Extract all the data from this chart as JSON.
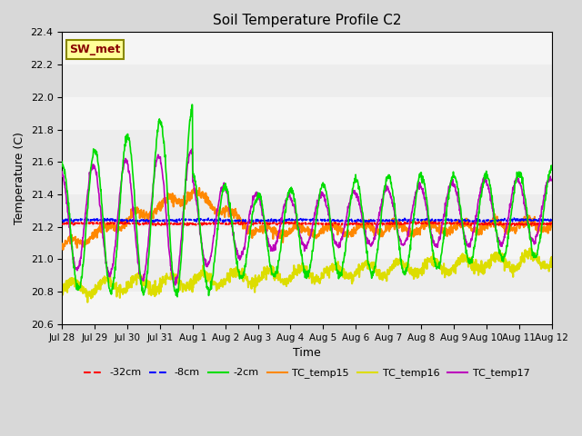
{
  "title": "Soil Temperature Profile C2",
  "xlabel": "Time",
  "ylabel": "Temperature (C)",
  "ylim": [
    20.6,
    22.4
  ],
  "yticks": [
    20.6,
    20.8,
    21.0,
    21.2,
    21.4,
    21.6,
    21.8,
    22.0,
    22.2,
    22.4
  ],
  "xticklabels": [
    "Jul 28",
    "Jul 29",
    "Jul 30",
    "Jul 31",
    "Aug 1",
    "Aug 2",
    "Aug 3",
    "Aug 4",
    "Aug 5",
    "Aug 6",
    "Aug 7",
    "Aug 8",
    "Aug 9",
    "Aug 10",
    "Aug 11",
    "Aug 12"
  ],
  "n_points": 1500,
  "days": 15,
  "series": {
    "neg32cm": {
      "color": "#ff0000",
      "label": "-32cm",
      "linestyle": "--",
      "linewidth": 1.2
    },
    "neg8cm": {
      "color": "#0000ff",
      "label": "-8cm",
      "linestyle": "--",
      "linewidth": 1.2
    },
    "neg2cm": {
      "color": "#00dd00",
      "label": "-2cm",
      "linestyle": "-",
      "linewidth": 1.2
    },
    "TC_temp15": {
      "color": "#ff8800",
      "label": "TC_temp15",
      "linestyle": "-",
      "linewidth": 1.5
    },
    "TC_temp16": {
      "color": "#dddd00",
      "label": "TC_temp16",
      "linestyle": "-",
      "linewidth": 1.5
    },
    "TC_temp17": {
      "color": "#bb00bb",
      "label": "TC_temp17",
      "linestyle": "-",
      "linewidth": 1.2
    }
  },
  "plot_bg_color": "#e8e8e8",
  "band_light_color": "#f5f5f5",
  "sw_met_bg": "#ffff99",
  "sw_met_fg": "#880000",
  "sw_met_edge": "#888800"
}
